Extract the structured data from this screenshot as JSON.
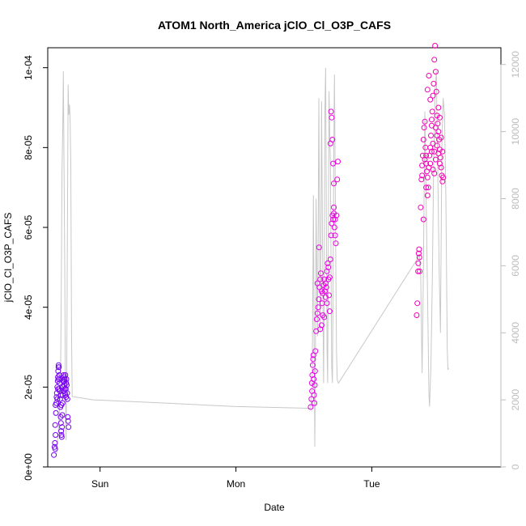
{
  "chart_data": {
    "type": "scatter",
    "title": "ATOM1 North_America jClO_Cl_O3P_CAFS",
    "xlabel": "Date",
    "ylabel": "jClO_Cl_O3P_CAFS",
    "x_ticks": [
      "Sun",
      "Mon",
      "Tue"
    ],
    "y_ticks": [
      "0e+00",
      "2e-05",
      "4e-05",
      "6e-05",
      "8e-05",
      "1e-04"
    ],
    "y2_ticks": [
      "0",
      "2000",
      "4000",
      "6000",
      "8000",
      "10000",
      "12000"
    ],
    "xlim": [
      -0.385,
      2.95
    ],
    "ylim": [
      0,
      0.000105
    ],
    "y2lim": [
      0,
      12500
    ],
    "colors": {
      "line": "#c8c8c8",
      "y2_axis": "#bdbdbd",
      "axis": "#000000"
    },
    "altitude_line": [
      [
        -0.32,
        400
      ],
      [
        -0.31,
        900
      ],
      [
        -0.3,
        1500
      ],
      [
        -0.29,
        3200
      ],
      [
        -0.285,
        5500
      ],
      [
        -0.28,
        8800
      ],
      [
        -0.275,
        10000
      ],
      [
        -0.27,
        11800
      ],
      [
        -0.265,
        9000
      ],
      [
        -0.26,
        6000
      ],
      [
        -0.255,
        2500
      ],
      [
        -0.25,
        800
      ],
      [
        -0.245,
        3000
      ],
      [
        -0.24,
        7000
      ],
      [
        -0.235,
        11400
      ],
      [
        -0.23,
        10500
      ],
      [
        -0.225,
        10800
      ],
      [
        -0.22,
        10300
      ],
      [
        -0.215,
        9000
      ],
      [
        -0.21,
        4000
      ],
      [
        -0.205,
        2100
      ],
      [
        -0.05,
        2000
      ],
      [
        0.5,
        1900
      ],
      [
        1.0,
        1800
      ],
      [
        1.55,
        1750
      ],
      [
        1.56,
        2200
      ],
      [
        1.565,
        4500
      ],
      [
        1.57,
        8100
      ],
      [
        1.575,
        4000
      ],
      [
        1.58,
        600
      ],
      [
        1.585,
        3500
      ],
      [
        1.59,
        8000
      ],
      [
        1.595,
        5600
      ],
      [
        1.6,
        3900
      ],
      [
        1.605,
        7000
      ],
      [
        1.61,
        11000
      ],
      [
        1.615,
        7500
      ],
      [
        1.62,
        4000
      ],
      [
        1.625,
        6500
      ],
      [
        1.63,
        10900
      ],
      [
        1.635,
        8000
      ],
      [
        1.64,
        5000
      ],
      [
        1.645,
        2500
      ],
      [
        1.65,
        6000
      ],
      [
        1.655,
        10600
      ],
      [
        1.66,
        11900
      ],
      [
        1.665,
        8000
      ],
      [
        1.67,
        3500
      ],
      [
        1.675,
        2500
      ],
      [
        1.68,
        6500
      ],
      [
        1.685,
        11200
      ],
      [
        1.69,
        10000
      ],
      [
        1.695,
        9000
      ],
      [
        1.7,
        6000
      ],
      [
        1.705,
        3000
      ],
      [
        1.71,
        2500
      ],
      [
        1.715,
        5500
      ],
      [
        1.72,
        9500
      ],
      [
        1.725,
        11700
      ],
      [
        1.73,
        9000
      ],
      [
        1.735,
        6000
      ],
      [
        1.74,
        3500
      ],
      [
        1.745,
        2600
      ],
      [
        1.755,
        2500
      ],
      [
        2.35,
        6300
      ],
      [
        2.36,
        5700
      ],
      [
        2.37,
        2800
      ],
      [
        2.38,
        6000
      ],
      [
        2.39,
        10600
      ],
      [
        2.4,
        8000
      ],
      [
        2.41,
        5200
      ],
      [
        2.415,
        3700
      ],
      [
        2.42,
        2200
      ],
      [
        2.425,
        1800
      ],
      [
        2.435,
        3000
      ],
      [
        2.445,
        5500
      ],
      [
        2.455,
        9000
      ],
      [
        2.465,
        11200
      ],
      [
        2.475,
        11800
      ],
      [
        2.485,
        9000
      ],
      [
        2.495,
        6000
      ],
      [
        2.505,
        4000
      ],
      [
        2.515,
        9500
      ],
      [
        2.525,
        11000
      ],
      [
        2.535,
        10500
      ],
      [
        2.545,
        8000
      ],
      [
        2.555,
        3500
      ],
      [
        2.56,
        2900
      ],
      [
        2.565,
        2950
      ]
    ],
    "points": [
      [
        -0.34,
        3e-06
      ],
      [
        -0.335,
        5e-06
      ],
      [
        -0.33,
        4.5e-06
      ],
      [
        -0.332,
        6e-06
      ],
      [
        -0.328,
        8e-06
      ],
      [
        -0.33,
        1.05e-05
      ],
      [
        -0.325,
        1.35e-05
      ],
      [
        -0.328,
        1.55e-05
      ],
      [
        -0.322,
        1.6e-05
      ],
      [
        -0.32,
        1.75e-05
      ],
      [
        -0.318,
        1.85e-05
      ],
      [
        -0.315,
        2e-05
      ],
      [
        -0.312,
        2.15e-05
      ],
      [
        -0.31,
        2.25e-05
      ],
      [
        -0.308,
        2.4e-05
      ],
      [
        -0.306,
        2.5e-05
      ],
      [
        -0.305,
        2.55e-05
      ],
      [
        -0.303,
        2.5e-05
      ],
      [
        -0.3,
        2.3e-05
      ],
      [
        -0.298,
        2.1e-05
      ],
      [
        -0.296,
        1.9e-05
      ],
      [
        -0.294,
        1.7e-05
      ],
      [
        -0.292,
        1.5e-05
      ],
      [
        -0.29,
        1.25e-05
      ],
      [
        -0.288,
        1.1e-05
      ],
      [
        -0.286,
        9e-06
      ],
      [
        -0.284,
        8e-06
      ],
      [
        -0.282,
        7.5e-06
      ],
      [
        -0.28,
        1e-05
      ],
      [
        -0.278,
        1.3e-05
      ],
      [
        -0.276,
        1.6e-05
      ],
      [
        -0.274,
        1.8e-05
      ],
      [
        -0.272,
        2e-05
      ],
      [
        -0.27,
        2.15e-05
      ],
      [
        -0.268,
        2.3e-05
      ],
      [
        -0.266,
        2.25e-05
      ],
      [
        -0.264,
        2.15e-05
      ],
      [
        -0.262,
        2.05e-05
      ],
      [
        -0.26,
        1.95e-05
      ],
      [
        -0.258,
        1.85e-05
      ],
      [
        -0.255,
        1.8e-05
      ],
      [
        -0.252,
        1.95e-05
      ],
      [
        -0.25,
        2.1e-05
      ],
      [
        -0.248,
        2.2e-05
      ],
      [
        -0.245,
        2.05e-05
      ],
      [
        -0.242,
        1.85e-05
      ],
      [
        -0.24,
        1.7e-05
      ],
      [
        -0.238,
        1.25e-05
      ],
      [
        -0.235,
        1.15e-05
      ],
      [
        -0.232,
        1e-05
      ],
      [
        -0.3,
        1.95e-05
      ],
      [
        -0.305,
        2.2e-05
      ],
      [
        -0.31,
        1.95e-05
      ],
      [
        -0.315,
        1.7e-05
      ],
      [
        -0.27,
        1.9e-05
      ],
      [
        -0.26,
        2.2e-05
      ],
      [
        -0.255,
        2.3e-05
      ],
      [
        -0.25,
        1.75e-05
      ],
      [
        -0.29,
        1.8e-05
      ],
      [
        -0.285,
        1.55e-05
      ],
      [
        1.55,
        1.5e-05
      ],
      [
        1.555,
        1.7e-05
      ],
      [
        1.56,
        1.9e-05
      ],
      [
        1.558,
        2.1e-05
      ],
      [
        1.562,
        2.3e-05
      ],
      [
        1.565,
        2.55e-05
      ],
      [
        1.568,
        2.7e-05
      ],
      [
        1.57,
        2.8e-05
      ],
      [
        1.572,
        2.2e-05
      ],
      [
        1.575,
        1.8e-05
      ],
      [
        1.578,
        1.6e-05
      ],
      [
        1.58,
        2.05e-05
      ],
      [
        1.582,
        2.4e-05
      ],
      [
        1.585,
        2.9e-05
      ],
      [
        1.59,
        3.4e-05
      ],
      [
        1.595,
        3.7e-05
      ],
      [
        1.6,
        3.85e-05
      ],
      [
        1.605,
        4e-05
      ],
      [
        1.61,
        4.2e-05
      ],
      [
        1.615,
        4.5e-05
      ],
      [
        1.62,
        4.7e-05
      ],
      [
        1.625,
        4.85e-05
      ],
      [
        1.63,
        4.4e-05
      ],
      [
        1.635,
        4.1e-05
      ],
      [
        1.64,
        3.8e-05
      ],
      [
        1.645,
        4.55e-05
      ],
      [
        1.65,
        4.7e-05
      ],
      [
        1.655,
        4.4e-05
      ],
      [
        1.66,
        4.25e-05
      ],
      [
        1.665,
        4.5e-05
      ],
      [
        1.67,
        4.9e-05
      ],
      [
        1.675,
        5.1e-05
      ],
      [
        1.68,
        4.7e-05
      ],
      [
        1.685,
        4.3e-05
      ],
      [
        1.69,
        3.9e-05
      ],
      [
        1.695,
        5.2e-05
      ],
      [
        1.7,
        5.8e-05
      ],
      [
        1.705,
        6.1e-05
      ],
      [
        1.71,
        6.3e-05
      ],
      [
        1.715,
        6.2e-05
      ],
      [
        1.72,
        6.5e-05
      ],
      [
        1.725,
        6e-05
      ],
      [
        1.73,
        5.8e-05
      ],
      [
        1.735,
        5.6e-05
      ],
      [
        1.74,
        6.3e-05
      ],
      [
        1.745,
        7.2e-05
      ],
      [
        1.75,
        7.65e-05
      ],
      [
        1.612,
        5.5e-05
      ],
      [
        1.62,
        3.45e-05
      ],
      [
        1.63,
        3.55e-05
      ],
      [
        1.65,
        3.75e-05
      ],
      [
        1.67,
        4.1e-05
      ],
      [
        1.695,
        8.1e-05
      ],
      [
        1.7,
        8.9e-05
      ],
      [
        1.705,
        8.75e-05
      ],
      [
        1.71,
        8.2e-05
      ],
      [
        1.715,
        7.6e-05
      ],
      [
        1.72,
        7.1e-05
      ],
      [
        1.72,
        6.35e-05
      ],
      [
        1.73,
        6.2e-05
      ],
      [
        1.6,
        4.6e-05
      ],
      [
        1.64,
        4.35e-05
      ],
      [
        1.66,
        4.6e-05
      ],
      [
        1.68,
        5e-05
      ],
      [
        1.69,
        4.75e-05
      ],
      [
        2.33,
        3.8e-05
      ],
      [
        2.335,
        4.1e-05
      ],
      [
        2.34,
        4.9e-05
      ],
      [
        2.342,
        5.1e-05
      ],
      [
        2.345,
        5.35e-05
      ],
      [
        2.348,
        5.45e-05
      ],
      [
        2.35,
        5.25e-05
      ],
      [
        2.352,
        4.9e-05
      ],
      [
        2.36,
        6.5e-05
      ],
      [
        2.365,
        7.2e-05
      ],
      [
        2.37,
        7.55e-05
      ],
      [
        2.375,
        7.8e-05
      ],
      [
        2.38,
        8.2e-05
      ],
      [
        2.385,
        8.5e-05
      ],
      [
        2.39,
        8.65e-05
      ],
      [
        2.395,
        8e-05
      ],
      [
        2.4,
        7.6e-05
      ],
      [
        2.405,
        7.4e-05
      ],
      [
        2.41,
        7.25e-05
      ],
      [
        2.415,
        7e-05
      ],
      [
        2.42,
        7.5e-05
      ],
      [
        2.425,
        7.8e-05
      ],
      [
        2.43,
        8e-05
      ],
      [
        2.435,
        8.3e-05
      ],
      [
        2.44,
        8.55e-05
      ],
      [
        2.445,
        8.9e-05
      ],
      [
        2.45,
        9.3e-05
      ],
      [
        2.455,
        9.6e-05
      ],
      [
        2.46,
        0.000102
      ],
      [
        2.465,
        0.0001055
      ],
      [
        2.47,
        9.9e-05
      ],
      [
        2.475,
        9.4e-05
      ],
      [
        2.48,
        8.8e-05
      ],
      [
        2.485,
        8.6e-05
      ],
      [
        2.49,
        8.4e-05
      ],
      [
        2.495,
        8.2e-05
      ],
      [
        2.5,
        7.95e-05
      ],
      [
        2.505,
        7.75e-05
      ],
      [
        2.51,
        7.5e-05
      ],
      [
        2.515,
        7.3e-05
      ],
      [
        2.52,
        7.15e-05
      ],
      [
        2.525,
        7.25e-05
      ],
      [
        2.38,
        6.2e-05
      ],
      [
        2.4,
        7.8e-05
      ],
      [
        2.41,
        9.45e-05
      ],
      [
        2.42,
        9.8e-05
      ],
      [
        2.43,
        9.2e-05
      ],
      [
        2.44,
        8.7e-05
      ],
      [
        2.45,
        8.1e-05
      ],
      [
        2.46,
        7.9e-05
      ],
      [
        2.47,
        7.7e-05
      ],
      [
        2.48,
        8.3e-05
      ],
      [
        2.49,
        9e-05
      ],
      [
        2.5,
        8.75e-05
      ],
      [
        2.37,
        7.3e-05
      ],
      [
        2.39,
        7.7e-05
      ],
      [
        2.4,
        7e-05
      ],
      [
        2.41,
        6.8e-05
      ],
      [
        2.43,
        7.6e-05
      ],
      [
        2.44,
        7.9e-05
      ],
      [
        2.45,
        7.45e-05
      ],
      [
        2.46,
        7.35e-05
      ],
      [
        2.47,
        8.5e-05
      ],
      [
        2.48,
        8.05e-05
      ],
      [
        2.49,
        7.85e-05
      ],
      [
        2.5,
        7.6e-05
      ],
      [
        2.51,
        8.25e-05
      ],
      [
        2.52,
        7.9e-05
      ]
    ]
  }
}
